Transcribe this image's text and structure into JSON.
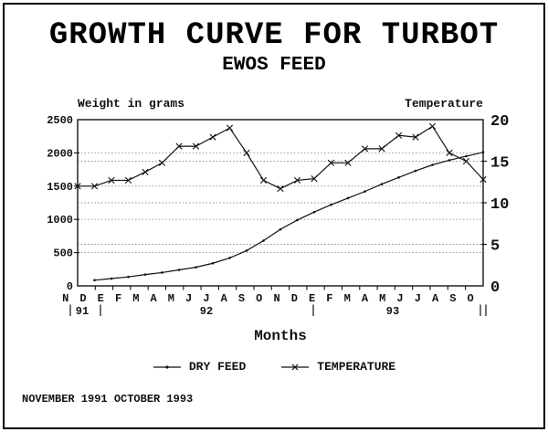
{
  "title": "GROWTH CURVE FOR TURBOT",
  "subtitle": "EWOS FEED",
  "footer": "NOVEMBER 1991 OCTOBER 1993",
  "chart_data": {
    "type": "line",
    "title": "GROWTH CURVE FOR TURBOT",
    "subtitle": "EWOS FEED",
    "x": {
      "label": "Months",
      "months": [
        "N",
        "D",
        "E",
        "F",
        "M",
        "A",
        "M",
        "J",
        "J",
        "A",
        "S",
        "O",
        "N",
        "D",
        "E",
        "F",
        "M",
        "A",
        "M",
        "J",
        "J",
        "A",
        "S",
        "O"
      ],
      "years": [
        "91",
        "92",
        "93"
      ],
      "period": "November 1991 - October 1993"
    },
    "left_axis": {
      "label": "Weight in grams",
      "ticks": [
        0,
        500,
        1000,
        1500,
        2000,
        2500
      ],
      "range": [
        0,
        2500
      ],
      "gridlines": [
        500,
        1000,
        1500,
        2000
      ]
    },
    "right_axis": {
      "label": "Temperature",
      "ticks": [
        0,
        5,
        10,
        15,
        20
      ],
      "range": [
        0,
        20
      ],
      "gridlines": [
        5,
        10,
        15
      ]
    },
    "series": [
      {
        "name": "DRY FEED",
        "axis": "left",
        "marker": "dot",
        "start_index": 1,
        "values": [
          85,
          110,
          135,
          170,
          200,
          240,
          280,
          340,
          420,
          530,
          680,
          850,
          990,
          1110,
          1220,
          1320,
          1420,
          1530,
          1630,
          1730,
          1820,
          1890,
          1950,
          2010
        ]
      },
      {
        "name": "TEMPERATURE",
        "axis": "right",
        "marker": "x",
        "start_index": 0,
        "values": [
          12,
          12,
          12.7,
          12.7,
          13.7,
          14.8,
          16.8,
          16.8,
          17.9,
          19,
          16,
          12.7,
          11.7,
          12.7,
          12.9,
          14.8,
          14.8,
          16.5,
          16.5,
          18.1,
          17.9,
          19.2,
          16,
          15,
          12.8
        ]
      }
    ],
    "legend_position": "bottom",
    "grid": true
  }
}
